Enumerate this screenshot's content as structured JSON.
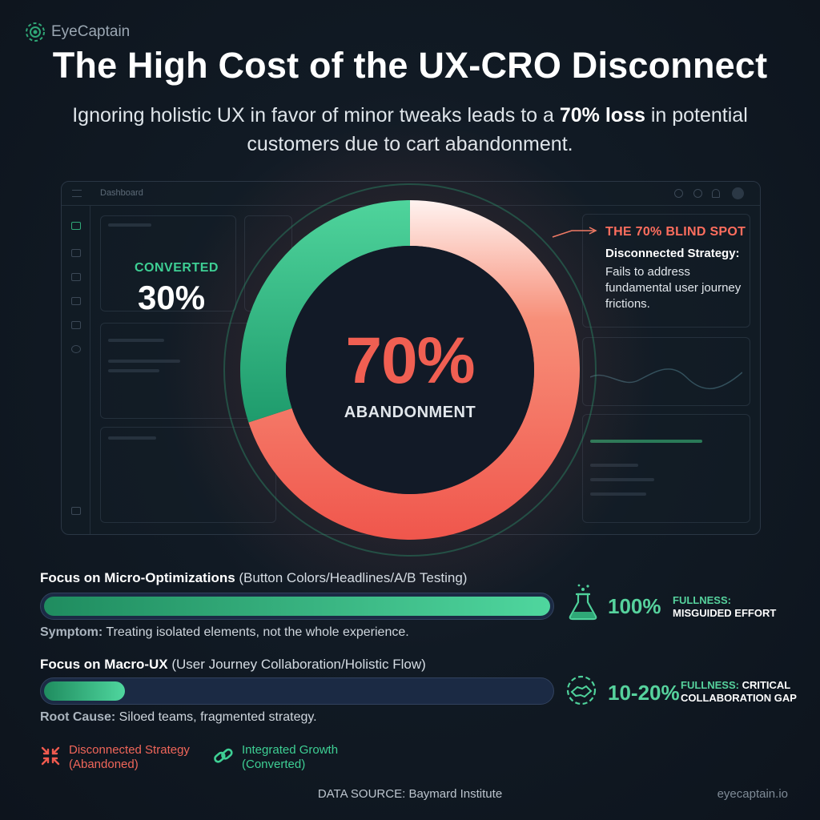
{
  "brand": {
    "name": "EyeCaptain",
    "site": "eyecaptain.io"
  },
  "header": {
    "title": "The High Cost of the UX-CRO Disconnect",
    "subtitle_pre": "Ignoring holistic UX in favor of minor tweaks leads to a ",
    "subtitle_bold": "70% loss",
    "subtitle_post": " in potential customers due to cart abandonment."
  },
  "dashboard": {
    "title": "Dashboard"
  },
  "chart_data": {
    "type": "pie",
    "series": [
      {
        "label": "CONVERTED",
        "value": 30,
        "display": "30%",
        "color": "#2fbf85"
      },
      {
        "label": "ABANDONMENT",
        "value": 70,
        "display": "70%",
        "color": "#f05a4f"
      }
    ],
    "callout": {
      "title": "THE 70% BLIND SPOT",
      "heading": "Disconnected Strategy:",
      "body": "Fails to address fundamental user journey frictions."
    }
  },
  "rows": [
    {
      "title_bold": "Focus on Micro-Optimizations",
      "title_rest": " (Button Colors/Headlines/A/B Testing)",
      "fill_fraction": 1.0,
      "note_label": "Symptom:",
      "note_text": " Treating isolated elements, not the whole experience.",
      "metric_value": "100%",
      "metric_key": "FULLNESS:",
      "metric_desc": "MISGUIDED EFFORT",
      "icon": "flask-icon"
    },
    {
      "title_bold": "Focus on Macro-UX",
      "title_rest": " (User Journey Collaboration/Holistic Flow)",
      "fill_fraction": 0.17,
      "note_label": "Root Cause:",
      "note_text": " Siloed teams, fragmented strategy.",
      "metric_value": "10-20%",
      "metric_key": "FULLNESS:",
      "metric_desc_1": " CRITICAL",
      "metric_desc_2": "COLLABORATION GAP",
      "icon": "handshake-gear-icon"
    }
  ],
  "legend": [
    {
      "line1": "Disconnected Strategy",
      "line2": "(Abandoned)",
      "color": "#f05a4f",
      "icon": "arrows-inward-icon"
    },
    {
      "line1": "Integrated Growth",
      "line2": "(Converted)",
      "color": "#3ecf94",
      "icon": "chain-link-icon"
    }
  ],
  "footer": {
    "source": "DATA SOURCE: Baymard Institute"
  }
}
